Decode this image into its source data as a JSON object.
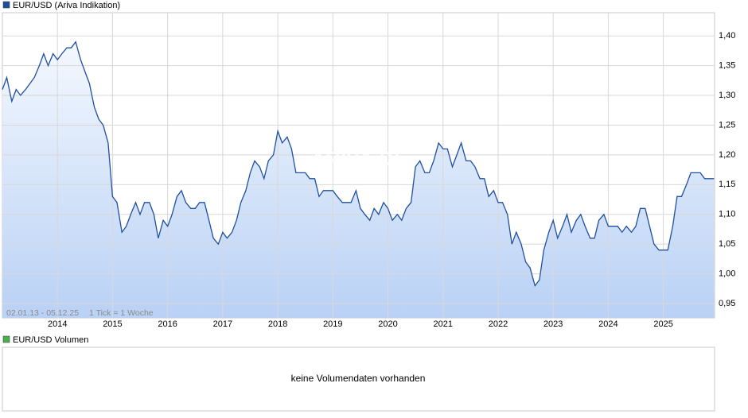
{
  "chart_data": {
    "type": "line",
    "title": "EUR/USD (Ariva Indikation)",
    "date_range": "02.01.13 - 05.12.25",
    "tick_note": "1 Tick = 1 Woche",
    "watermark": "ARIVA.DE",
    "x": [
      2013,
      2013.08,
      2013.17,
      2013.25,
      2013.33,
      2013.42,
      2013.5,
      2013.58,
      2013.67,
      2013.75,
      2013.83,
      2013.92,
      2014,
      2014.08,
      2014.17,
      2014.25,
      2014.33,
      2014.42,
      2014.5,
      2014.58,
      2014.67,
      2014.75,
      2014.83,
      2014.92,
      2015,
      2015.08,
      2015.17,
      2015.25,
      2015.33,
      2015.42,
      2015.5,
      2015.58,
      2015.67,
      2015.75,
      2015.83,
      2015.92,
      2016,
      2016.08,
      2016.17,
      2016.25,
      2016.33,
      2016.42,
      2016.5,
      2016.58,
      2016.67,
      2016.75,
      2016.83,
      2016.92,
      2017,
      2017.08,
      2017.17,
      2017.25,
      2017.33,
      2017.42,
      2017.5,
      2017.58,
      2017.67,
      2017.75,
      2017.83,
      2017.92,
      2018,
      2018.08,
      2018.17,
      2018.25,
      2018.33,
      2018.42,
      2018.5,
      2018.58,
      2018.67,
      2018.75,
      2018.83,
      2018.92,
      2019,
      2019.08,
      2019.17,
      2019.25,
      2019.33,
      2019.42,
      2019.5,
      2019.58,
      2019.67,
      2019.75,
      2019.83,
      2019.92,
      2020,
      2020.08,
      2020.17,
      2020.25,
      2020.33,
      2020.42,
      2020.5,
      2020.58,
      2020.67,
      2020.75,
      2020.83,
      2020.92,
      2021,
      2021.08,
      2021.17,
      2021.25,
      2021.33,
      2021.42,
      2021.5,
      2021.58,
      2021.67,
      2021.75,
      2021.83,
      2021.92,
      2022,
      2022.08,
      2022.17,
      2022.25,
      2022.33,
      2022.42,
      2022.5,
      2022.58,
      2022.67,
      2022.75,
      2022.83,
      2022.92,
      2023,
      2023.08,
      2023.17,
      2023.25,
      2023.33,
      2023.42,
      2023.5,
      2023.58,
      2023.67,
      2023.75,
      2023.83,
      2023.92,
      2024,
      2024.08,
      2024.17,
      2024.25,
      2024.33,
      2024.42,
      2024.5,
      2024.58,
      2024.67,
      2024.75,
      2024.83,
      2024.92,
      2025,
      2025.08,
      2025.17,
      2025.25,
      2025.33,
      2025.42,
      2025.5,
      2025.58,
      2025.67,
      2025.75,
      2025.83,
      2025.92
    ],
    "series": [
      {
        "name": "EUR/USD (Ariva Indikation)",
        "color": "#1f4fa0",
        "values": [
          1.31,
          1.33,
          1.29,
          1.31,
          1.3,
          1.31,
          1.32,
          1.33,
          1.35,
          1.37,
          1.35,
          1.37,
          1.36,
          1.37,
          1.38,
          1.38,
          1.39,
          1.36,
          1.34,
          1.32,
          1.28,
          1.26,
          1.25,
          1.22,
          1.13,
          1.12,
          1.07,
          1.08,
          1.1,
          1.12,
          1.1,
          1.12,
          1.12,
          1.1,
          1.06,
          1.09,
          1.08,
          1.1,
          1.13,
          1.14,
          1.12,
          1.11,
          1.11,
          1.12,
          1.12,
          1.09,
          1.06,
          1.05,
          1.07,
          1.06,
          1.07,
          1.09,
          1.12,
          1.14,
          1.17,
          1.19,
          1.18,
          1.16,
          1.19,
          1.2,
          1.24,
          1.22,
          1.23,
          1.21,
          1.17,
          1.17,
          1.17,
          1.16,
          1.16,
          1.13,
          1.14,
          1.14,
          1.14,
          1.13,
          1.12,
          1.12,
          1.12,
          1.14,
          1.11,
          1.1,
          1.09,
          1.11,
          1.1,
          1.12,
          1.11,
          1.09,
          1.1,
          1.09,
          1.11,
          1.12,
          1.18,
          1.19,
          1.17,
          1.17,
          1.19,
          1.22,
          1.21,
          1.21,
          1.18,
          1.2,
          1.22,
          1.19,
          1.19,
          1.18,
          1.16,
          1.16,
          1.13,
          1.14,
          1.12,
          1.12,
          1.1,
          1.05,
          1.07,
          1.05,
          1.02,
          1.01,
          0.98,
          0.99,
          1.04,
          1.07,
          1.09,
          1.06,
          1.08,
          1.1,
          1.07,
          1.09,
          1.1,
          1.08,
          1.06,
          1.06,
          1.09,
          1.1,
          1.08,
          1.08,
          1.08,
          1.07,
          1.08,
          1.07,
          1.08,
          1.11,
          1.11,
          1.08,
          1.05,
          1.04,
          1.04,
          1.04,
          1.08,
          1.13,
          1.13,
          1.15,
          1.17,
          1.17,
          1.17,
          1.16,
          1.16,
          1.16
        ]
      }
    ],
    "xlim": [
      2013,
      2025.93
    ],
    "xticks": [
      2014,
      2015,
      2016,
      2017,
      2018,
      2019,
      2020,
      2021,
      2022,
      2023,
      2024,
      2025
    ],
    "ylim": [
      0.926,
      1.439
    ],
    "yticks": [
      {
        "value": 0.95,
        "label": "0,95"
      },
      {
        "value": 1.0,
        "label": "1,00"
      },
      {
        "value": 1.05,
        "label": "1,05"
      },
      {
        "value": 1.1,
        "label": "1,10"
      },
      {
        "value": 1.15,
        "label": "1,15"
      },
      {
        "value": 1.2,
        "label": "1,20"
      },
      {
        "value": 1.25,
        "label": "1,25"
      },
      {
        "value": 1.3,
        "label": "1,30"
      },
      {
        "value": 1.35,
        "label": "1,35"
      },
      {
        "value": 1.4,
        "label": "1,40"
      }
    ],
    "grid": true
  },
  "volume_panel": {
    "legend": "EUR/USD Volumen",
    "color": "#4caf50",
    "message": "keine Volumendaten vorhanden"
  }
}
